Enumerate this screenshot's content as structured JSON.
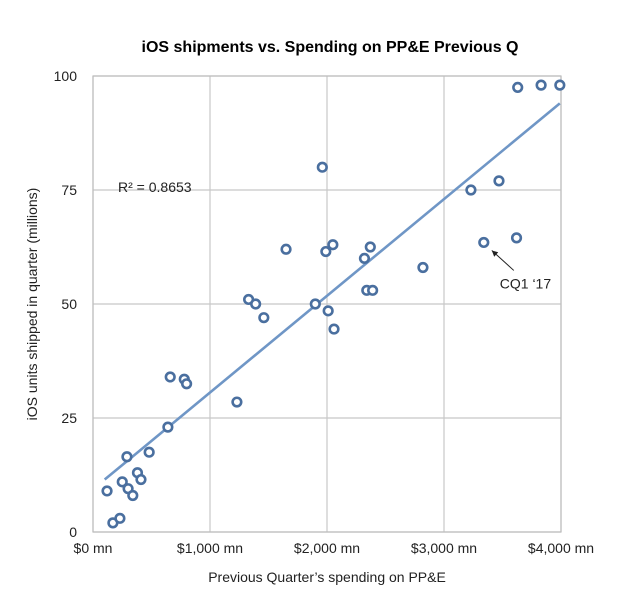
{
  "chart_data": {
    "type": "scatter",
    "title": "iOS shipments vs. Spending on PP&E Previous Q",
    "xlabel": "Previous Quarter’s spending on PP&E",
    "ylabel": "iOS units shipped in quarter (millions)",
    "xlim": [
      0,
      4000
    ],
    "ylim": [
      0,
      100
    ],
    "x_ticks": [
      0,
      1000,
      2000,
      3000,
      4000
    ],
    "x_tick_labels": [
      "$0 mn",
      "$1,000 mn",
      "$2,000 mn",
      "$3,000 mn",
      "$4,000 mn"
    ],
    "y_ticks": [
      0,
      25,
      50,
      75,
      100
    ],
    "y_tick_labels": [
      "0",
      "25",
      "50",
      "75",
      "100"
    ],
    "grid": true,
    "legend": "none",
    "marker_color": "#4a6f9f",
    "trendline": {
      "type": "linear",
      "color": "#6f96c6",
      "from": [
        100,
        11.5
      ],
      "to": [
        3990,
        94
      ],
      "r2_label": "R² = 0.8653"
    },
    "annotations": [
      {
        "text": "CQ1 ‘17",
        "point": [
          3340,
          63.5
        ]
      }
    ],
    "points": [
      [
        120,
        9
      ],
      [
        170,
        2
      ],
      [
        230,
        3
      ],
      [
        250,
        11
      ],
      [
        290,
        16.5
      ],
      [
        300,
        9.5
      ],
      [
        340,
        8
      ],
      [
        380,
        13
      ],
      [
        410,
        11.5
      ],
      [
        480,
        17.5
      ],
      [
        640,
        23
      ],
      [
        660,
        34
      ],
      [
        780,
        33.5
      ],
      [
        800,
        32.5
      ],
      [
        1230,
        28.5
      ],
      [
        1330,
        51
      ],
      [
        1390,
        50
      ],
      [
        1460,
        47
      ],
      [
        1650,
        62
      ],
      [
        1900,
        50
      ],
      [
        1960,
        80
      ],
      [
        1990,
        61.5
      ],
      [
        2010,
        48.5
      ],
      [
        2050,
        63
      ],
      [
        2060,
        44.5
      ],
      [
        2320,
        60
      ],
      [
        2340,
        53
      ],
      [
        2370,
        62.5
      ],
      [
        2390,
        53
      ],
      [
        2820,
        58
      ],
      [
        3230,
        75
      ],
      [
        3340,
        63.5
      ],
      [
        3470,
        77
      ],
      [
        3620,
        64.5
      ],
      [
        3630,
        97.5
      ],
      [
        3830,
        98
      ],
      [
        3990,
        98
      ]
    ]
  }
}
